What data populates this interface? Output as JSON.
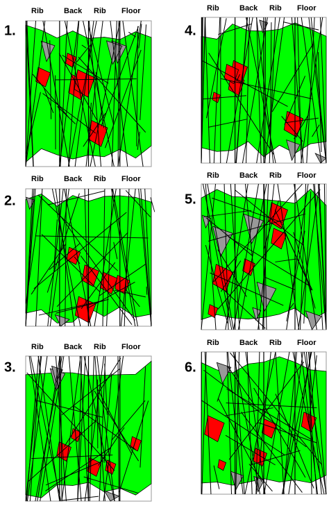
{
  "panels": [
    {
      "number": "1.",
      "labels": [
        "Rib",
        "Back",
        "Rib",
        "Floor"
      ]
    },
    {
      "number": "2.",
      "labels": [
        "Rib",
        "Back",
        "Rib",
        "Floor"
      ]
    },
    {
      "number": "3.",
      "labels": [
        "Rib",
        "Back",
        "Rib",
        "Floor"
      ]
    },
    {
      "number": "4.",
      "labels": [
        "Rib",
        "Back",
        "Rib",
        "Floor"
      ]
    },
    {
      "number": "5.",
      "labels": [
        "Rib",
        "Back",
        "Rib",
        "Floor"
      ]
    },
    {
      "number": "6.",
      "labels": [
        "Rib",
        "Back",
        "Rib",
        "Floor"
      ]
    }
  ]
}
